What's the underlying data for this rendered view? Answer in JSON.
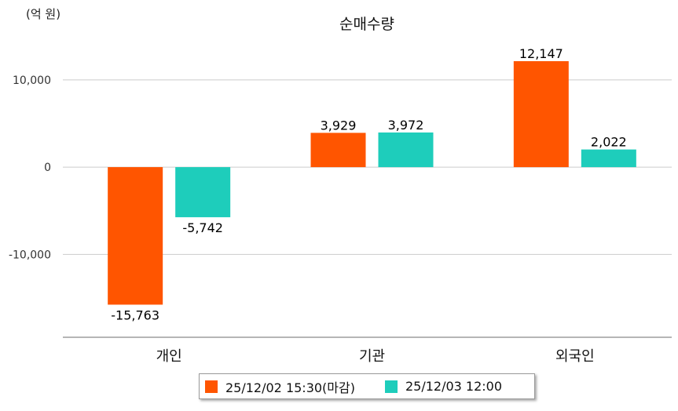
{
  "chart_data": {
    "type": "bar",
    "title": "순매수량",
    "unit_label": "(억 원)",
    "categories": [
      "개인",
      "기관",
      "외국인"
    ],
    "series": [
      {
        "name": "25/12/02 15:30(마감)",
        "color": "#FF5500",
        "values": [
          -15763,
          3929,
          12147
        ],
        "labels": [
          "-15,763",
          "3,929",
          "12,147"
        ]
      },
      {
        "name": "25/12/03 12:00",
        "color": "#1ECDBB",
        "values": [
          -5742,
          3972,
          2022
        ],
        "labels": [
          "-5,742",
          "3,972",
          "2,022"
        ]
      }
    ],
    "yticks": [
      10000,
      0,
      -10000
    ],
    "ytick_labels": [
      "10,000",
      "0",
      "-10,000"
    ],
    "ylim": [
      -19500,
      15200
    ],
    "grid": true,
    "legend_position": "bottom-center"
  }
}
